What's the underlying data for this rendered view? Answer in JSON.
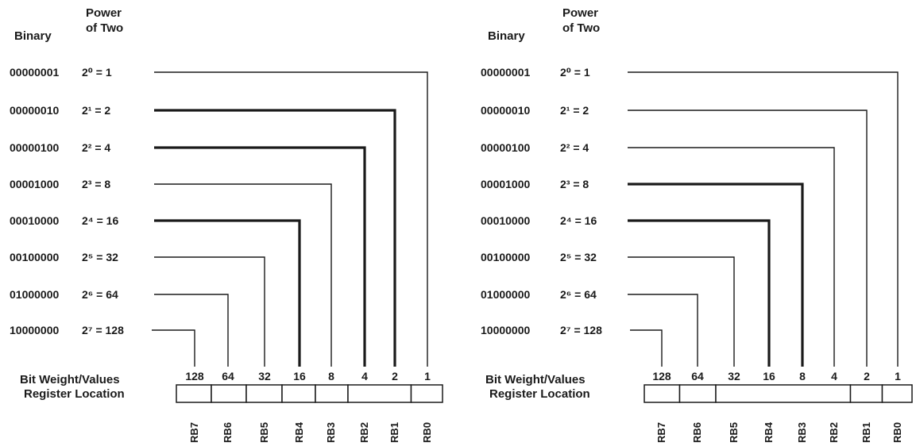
{
  "panels": [
    {
      "binary_header": "Binary",
      "power_header_line1": "Power",
      "power_header_line2": "of Two",
      "rows": [
        {
          "binary": "00000001",
          "power": "2⁰ = 1",
          "bold": false
        },
        {
          "binary": "00000010",
          "power": "2¹ = 2",
          "bold": true
        },
        {
          "binary": "00000100",
          "power": "2² = 4",
          "bold": true
        },
        {
          "binary": "00001000",
          "power": "2³ = 8",
          "bold": false
        },
        {
          "binary": "00010000",
          "power": "2⁴ = 16",
          "bold": true
        },
        {
          "binary": "00100000",
          "power": "2⁵ = 32",
          "bold": false
        },
        {
          "binary": "01000000",
          "power": "2⁶ = 64",
          "bold": false
        },
        {
          "binary": "10000000",
          "power": "2⁷ = 128",
          "bold": false
        }
      ],
      "bit_weight_label": "Bit Weight/Values",
      "register_label": "Register Location",
      "weights": [
        "128",
        "64",
        "32",
        "16",
        "8",
        "4",
        "2",
        "1"
      ],
      "registers": [
        "RB7",
        "RB6",
        "RB5",
        "RB4",
        "RB3",
        "RB2",
        "RB1",
        "RB0"
      ],
      "cell_groups": [
        [
          0
        ],
        [
          1
        ],
        [
          2
        ],
        [
          3
        ],
        [
          4
        ],
        [
          5,
          6
        ],
        [
          7
        ]
      ]
    },
    {
      "binary_header": "Binary",
      "power_header_line1": "Power",
      "power_header_line2": "of Two",
      "rows": [
        {
          "binary": "00000001",
          "power": "2⁰ = 1",
          "bold": false
        },
        {
          "binary": "00000010",
          "power": "2¹ = 2",
          "bold": false
        },
        {
          "binary": "00000100",
          "power": "2² = 4",
          "bold": false
        },
        {
          "binary": "00001000",
          "power": "2³ = 8",
          "bold": true
        },
        {
          "binary": "00010000",
          "power": "2⁴ = 16",
          "bold": true
        },
        {
          "binary": "00100000",
          "power": "2⁵ = 32",
          "bold": false
        },
        {
          "binary": "01000000",
          "power": "2⁶ = 64",
          "bold": false
        },
        {
          "binary": "10000000",
          "power": "2⁷ = 128",
          "bold": false
        }
      ],
      "bit_weight_label": "Bit Weight/Values",
      "register_label": "Register Location",
      "weights": [
        "128",
        "64",
        "32",
        "16",
        "8",
        "4",
        "2",
        "1"
      ],
      "registers": [
        "RB7",
        "RB6",
        "RB5",
        "RB4",
        "RB3",
        "RB2",
        "RB1",
        "RB0"
      ],
      "cell_groups": [
        [
          0
        ],
        [
          1
        ],
        [
          2,
          3,
          4,
          5
        ],
        [
          6
        ],
        [
          7
        ]
      ]
    }
  ]
}
